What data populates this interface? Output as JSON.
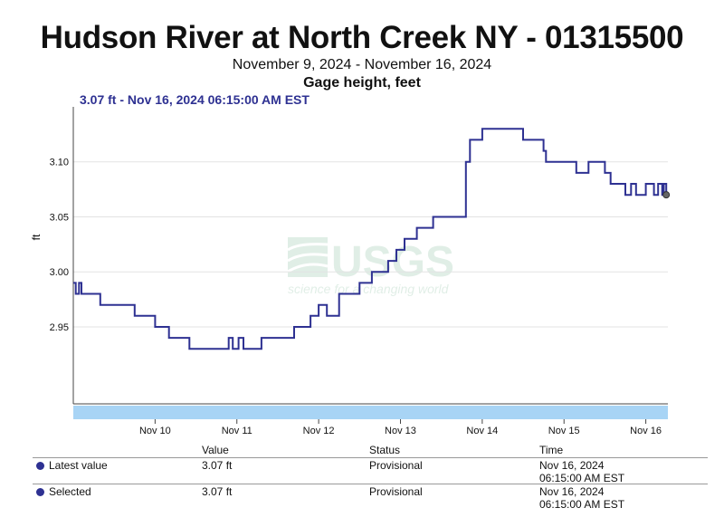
{
  "header": {
    "title": "Hudson River at North Creek NY - 01315500",
    "date_range": "November 9, 2024 - November 16, 2024",
    "parameter": "Gage height, feet",
    "latest_label": "3.07 ft - Nov 16, 2024 06:15:00 AM EST"
  },
  "watermark": {
    "logo_text": "USGS",
    "tagline": "science for a changing world"
  },
  "chart_data": {
    "type": "line",
    "ylabel": "ft",
    "ylim": [
      2.88,
      3.15
    ],
    "yticks": [
      "2.95",
      "3.00",
      "3.05",
      "3.10"
    ],
    "xticks": [
      "Nov 10",
      "Nov 11",
      "Nov 12",
      "Nov 13",
      "Nov 14",
      "Nov 15",
      "Nov 16"
    ],
    "xrange_days": [
      9.0,
      16.27
    ],
    "series": [
      {
        "color": "#2e3192",
        "points": [
          [
            9.0,
            2.99
          ],
          [
            9.03,
            2.98
          ],
          [
            9.07,
            2.99
          ],
          [
            9.1,
            2.98
          ],
          [
            9.33,
            2.97
          ],
          [
            9.75,
            2.96
          ],
          [
            10.0,
            2.95
          ],
          [
            10.17,
            2.94
          ],
          [
            10.42,
            2.93
          ],
          [
            10.9,
            2.94
          ],
          [
            10.95,
            2.93
          ],
          [
            11.02,
            2.94
          ],
          [
            11.08,
            2.93
          ],
          [
            11.3,
            2.94
          ],
          [
            11.7,
            2.95
          ],
          [
            11.9,
            2.96
          ],
          [
            12.0,
            2.97
          ],
          [
            12.1,
            2.96
          ],
          [
            12.25,
            2.98
          ],
          [
            12.5,
            2.99
          ],
          [
            12.65,
            3.0
          ],
          [
            12.85,
            3.01
          ],
          [
            12.95,
            3.02
          ],
          [
            13.05,
            3.03
          ],
          [
            13.2,
            3.04
          ],
          [
            13.4,
            3.05
          ],
          [
            13.8,
            3.1
          ],
          [
            13.85,
            3.12
          ],
          [
            14.0,
            3.13
          ],
          [
            14.5,
            3.12
          ],
          [
            14.75,
            3.11
          ],
          [
            14.78,
            3.1
          ],
          [
            15.15,
            3.09
          ],
          [
            15.3,
            3.1
          ],
          [
            15.5,
            3.09
          ],
          [
            15.57,
            3.08
          ],
          [
            15.75,
            3.07
          ],
          [
            15.82,
            3.08
          ],
          [
            15.88,
            3.07
          ],
          [
            16.0,
            3.08
          ],
          [
            16.1,
            3.07
          ],
          [
            16.15,
            3.08
          ],
          [
            16.2,
            3.07
          ],
          [
            16.22,
            3.08
          ],
          [
            16.25,
            3.07
          ]
        ]
      }
    ],
    "latest_point": [
      16.25,
      3.07
    ]
  },
  "table": {
    "headers": [
      "Value",
      "Status",
      "Time"
    ],
    "rows": [
      {
        "label": "Latest value",
        "value": "3.07 ft",
        "status": "Provisional",
        "date": "Nov 16, 2024",
        "time": "06:15:00 AM EST"
      },
      {
        "label": "Selected",
        "value": "3.07 ft",
        "status": "Provisional",
        "date": "Nov 16, 2024",
        "time": "06:15:00 AM EST"
      }
    ]
  }
}
